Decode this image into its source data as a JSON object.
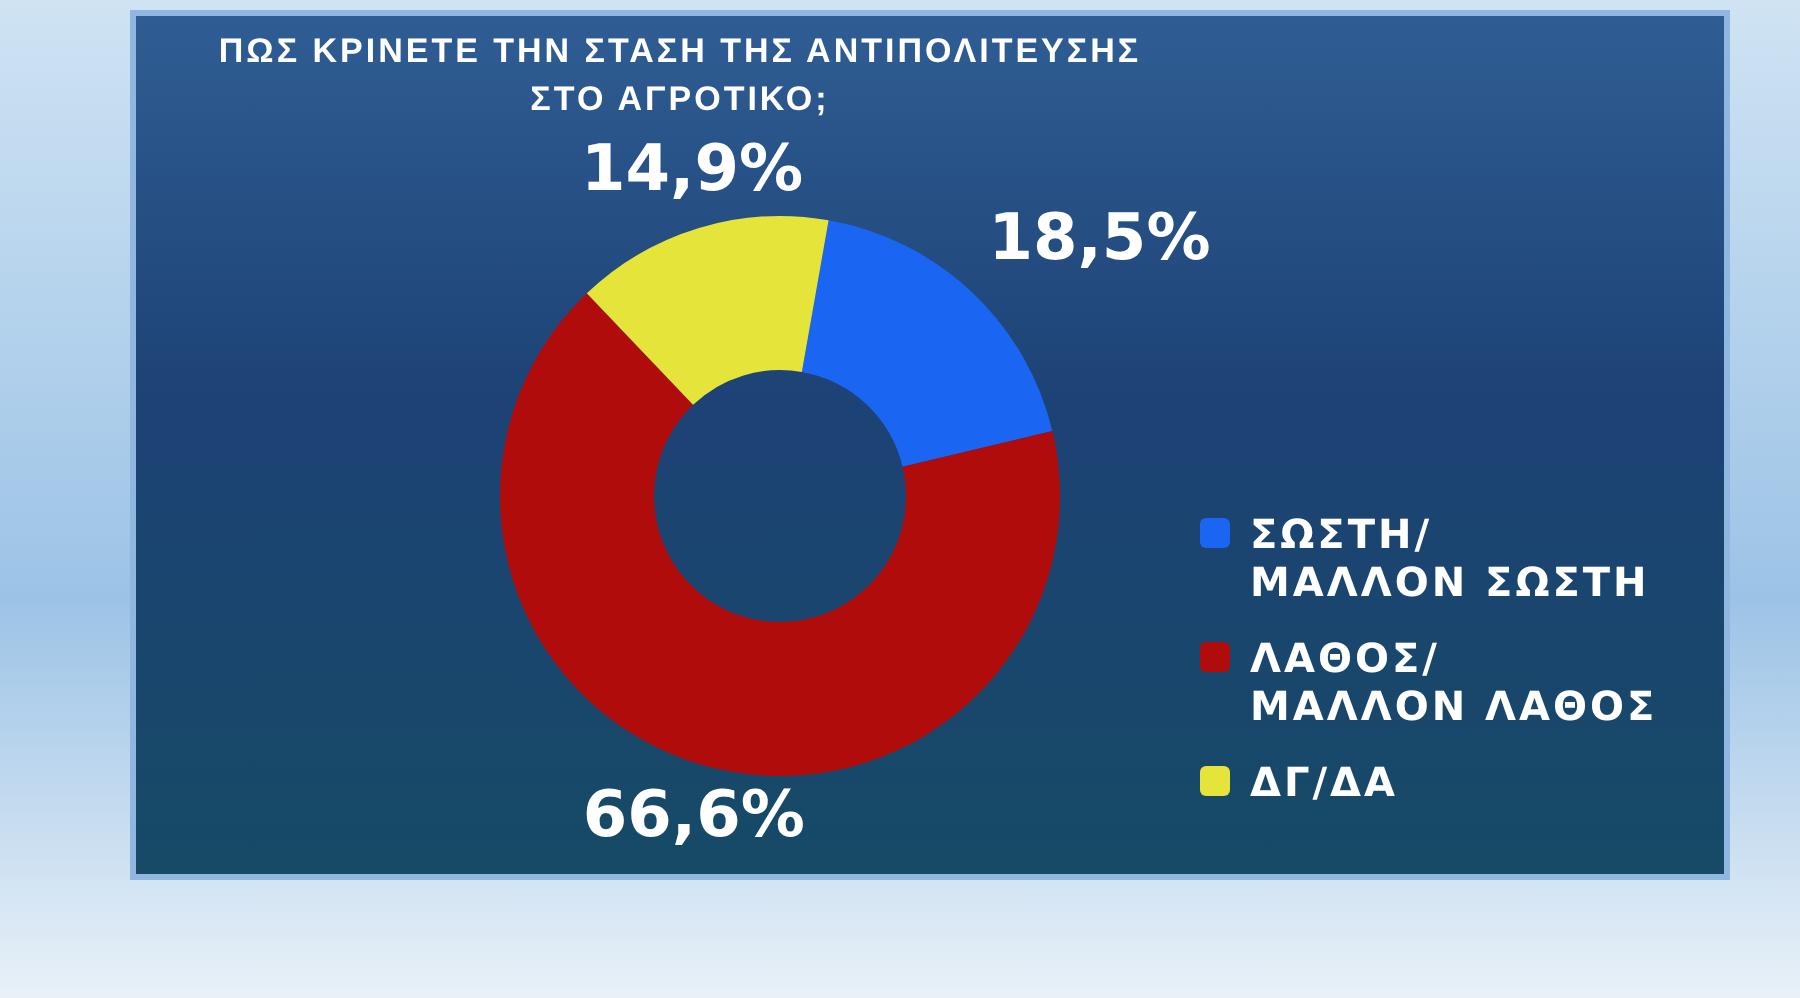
{
  "chart_data": {
    "type": "donut",
    "title": "ΠΩΣ ΚΡΙΝΕΤΕ ΤΗΝ ΣΤΑΣΗ ΤΗΣ ΑΝΤΙΠΟΛΙΤΕΥΣΗΣ ΣΤΟ ΑΓΡΟΤΙΚΟ;",
    "categories": [
      "ΣΩΣΤΗ/\nΜΑΛΛΟΝ ΣΩΣΤΗ",
      "ΛΑΘΟΣ/\nΜΑΛΛΟΝ ΛΑΘΟΣ",
      "ΔΓ/ΔΑ"
    ],
    "values": [
      18.5,
      66.6,
      14.9
    ],
    "colors": [
      "#1a66f2",
      "#b00c0c",
      "#e4e43a"
    ],
    "value_labels": [
      "18,5%",
      "66,6%",
      "14,9%"
    ],
    "legend": "right"
  }
}
